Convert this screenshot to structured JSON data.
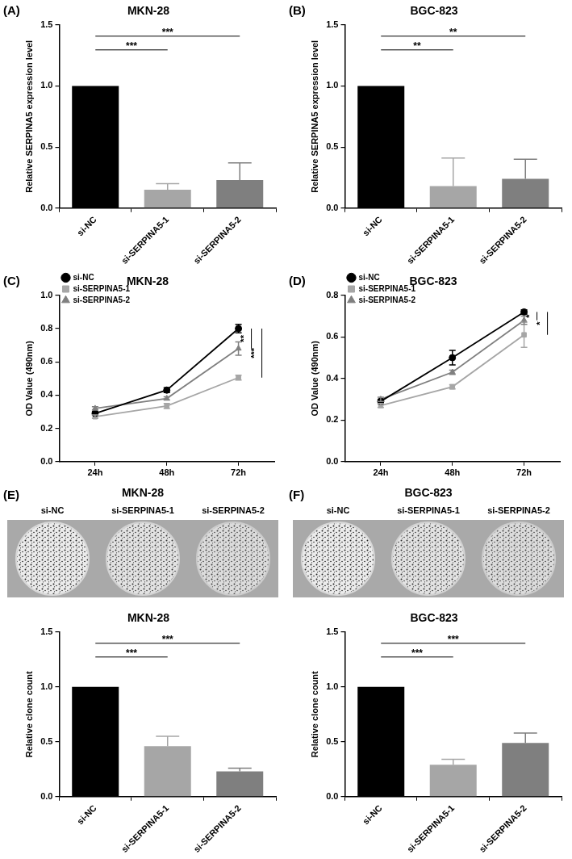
{
  "chart_data": [
    {
      "panel": "(A)",
      "type": "bar",
      "title": "MKN-28",
      "y_label": "Relative SERPINA5 expression level",
      "categories": [
        "si-NC",
        "si-SERPINA5-1",
        "si-SERPINA5-2"
      ],
      "values": [
        1.0,
        0.15,
        0.23
      ],
      "errors": [
        0,
        0.05,
        0.14
      ],
      "colors": [
        "#000000",
        "#a6a6a6",
        "#7f7f7f"
      ],
      "ylim": [
        0,
        1.5
      ],
      "yticks": [
        {
          "value": 0,
          "label": "0.0"
        },
        {
          "value": 0.5,
          "label": "0.5"
        },
        {
          "value": 1,
          "label": "1.0"
        },
        {
          "value": 1.5,
          "label": "1.5"
        }
      ],
      "grid": false,
      "annotations": [
        {
          "from": "si-NC",
          "to": "si-SERPINA5-1",
          "text": "***"
        },
        {
          "from": "si-NC",
          "to": "si-SERPINA5-2",
          "text": "***"
        }
      ]
    },
    {
      "panel": "(B)",
      "type": "bar",
      "title": "BGC-823",
      "y_label": "Relative SERPINA5 expression level",
      "categories": [
        "si-NC",
        "si-SERPINA5-1",
        "si-SERPINA5-2"
      ],
      "values": [
        1.0,
        0.18,
        0.24
      ],
      "errors": [
        0,
        0.23,
        0.16
      ],
      "colors": [
        "#000000",
        "#a6a6a6",
        "#7f7f7f"
      ],
      "ylim": [
        0,
        1.5
      ],
      "yticks": [
        {
          "value": 0,
          "label": "0.0"
        },
        {
          "value": 0.5,
          "label": "0.5"
        },
        {
          "value": 1,
          "label": "1.0"
        },
        {
          "value": 1.5,
          "label": "1.5"
        }
      ],
      "grid": false,
      "annotations": [
        {
          "from": "si-NC",
          "to": "si-SERPINA5-1",
          "text": "**"
        },
        {
          "from": "si-NC",
          "to": "si-SERPINA5-2",
          "text": "**"
        }
      ]
    },
    {
      "panel": "(C)",
      "type": "line",
      "title": "MKN-28",
      "y_label": "OD Value (490nm)",
      "categories": [
        "24h",
        "48h",
        "72h"
      ],
      "series": [
        {
          "name": "si-NC",
          "color": "#000000",
          "marker": "circle",
          "values": [
            0.29,
            0.43,
            0.8
          ],
          "errors": [
            0.01,
            0.015,
            0.025
          ]
        },
        {
          "name": "si-SERPINA5-1",
          "color": "#a6a6a6",
          "marker": "square",
          "values": [
            0.27,
            0.335,
            0.505
          ],
          "errors": [
            0.01,
            0.015,
            0.015
          ]
        },
        {
          "name": "si-SERPINA5-2",
          "color": "#808080",
          "marker": "triangle",
          "values": [
            0.32,
            0.38,
            0.68
          ],
          "errors": [
            0.01,
            0.01,
            0.04
          ]
        }
      ],
      "ylim": [
        0,
        1.0
      ],
      "yticks": [
        {
          "value": 0,
          "label": "0.0"
        },
        {
          "value": 0.2,
          "label": "0.2"
        },
        {
          "value": 0.4,
          "label": "0.4"
        },
        {
          "value": 0.6,
          "label": "0.6"
        },
        {
          "value": 0.8,
          "label": "0.8"
        },
        {
          "value": 1,
          "label": "1.0"
        }
      ],
      "grid": false,
      "legend": "upper left",
      "annotations": [
        {
          "at": "72h",
          "from": "si-NC",
          "to": "si-SERPINA5-2",
          "text": "**"
        },
        {
          "at": "72h",
          "from": "si-NC",
          "to": "si-SERPINA5-1",
          "text": "***"
        }
      ]
    },
    {
      "panel": "(D)",
      "type": "line",
      "title": "BGC-823",
      "y_label": "OD Value (490nm)",
      "categories": [
        "24h",
        "48h",
        "72h"
      ],
      "series": [
        {
          "name": "si-NC",
          "color": "#000000",
          "marker": "circle",
          "values": [
            0.29,
            0.5,
            0.72
          ],
          "errors": [
            0.01,
            0.035,
            0.01
          ]
        },
        {
          "name": "si-SERPINA5-1",
          "color": "#a6a6a6",
          "marker": "square",
          "values": [
            0.27,
            0.36,
            0.61
          ],
          "errors": [
            0.01,
            0.01,
            0.06
          ]
        },
        {
          "name": "si-SERPINA5-2",
          "color": "#808080",
          "marker": "triangle",
          "values": [
            0.3,
            0.43,
            0.68
          ],
          "errors": [
            0.01,
            0.01,
            0.02
          ]
        }
      ],
      "ylim": [
        0,
        0.8
      ],
      "yticks": [
        {
          "value": 0,
          "label": "0.0"
        },
        {
          "value": 0.2,
          "label": "0.2"
        },
        {
          "value": 0.4,
          "label": "0.4"
        },
        {
          "value": 0.6,
          "label": "0.6"
        },
        {
          "value": 0.8,
          "label": "0.8"
        }
      ],
      "grid": false,
      "legend": "upper left",
      "annotations": [
        {
          "at": "72h",
          "from": "si-NC",
          "to": "si-SERPINA5-2",
          "text": "*"
        },
        {
          "at": "72h",
          "from": "si-NC",
          "to": "si-SERPINA5-1",
          "text": "*"
        }
      ]
    },
    {
      "type": "bar",
      "title": "MKN-28",
      "y_label": "Relative clone count",
      "categories": [
        "si-NC",
        "si-SERPINA5-1",
        "si-SERPINA5-2"
      ],
      "values": [
        1.0,
        0.46,
        0.23
      ],
      "errors": [
        0,
        0.09,
        0.03
      ],
      "colors": [
        "#000000",
        "#a6a6a6",
        "#7f7f7f"
      ],
      "ylim": [
        0,
        1.5
      ],
      "yticks": [
        {
          "value": 0,
          "label": "0.0"
        },
        {
          "value": 0.5,
          "label": "0.5"
        },
        {
          "value": 1,
          "label": "1.0"
        },
        {
          "value": 1.5,
          "label": "1.5"
        }
      ],
      "grid": false,
      "annotations": [
        {
          "from": "si-NC",
          "to": "si-SERPINA5-1",
          "text": "***"
        },
        {
          "from": "si-NC",
          "to": "si-SERPINA5-2",
          "text": "***"
        }
      ]
    },
    {
      "type": "bar",
      "title": "BGC-823",
      "y_label": "Relative clone count",
      "categories": [
        "si-NC",
        "si-SERPINA5-1",
        "si-SERPINA5-2"
      ],
      "values": [
        1.0,
        0.29,
        0.49
      ],
      "errors": [
        0,
        0.05,
        0.09
      ],
      "colors": [
        "#000000",
        "#a6a6a6",
        "#7f7f7f"
      ],
      "ylim": [
        0,
        1.5
      ],
      "yticks": [
        {
          "value": 0,
          "label": "0.0"
        },
        {
          "value": 0.5,
          "label": "0.5"
        },
        {
          "value": 1,
          "label": "1.0"
        },
        {
          "value": 1.5,
          "label": "1.5"
        }
      ],
      "grid": false,
      "annotations": [
        {
          "from": "si-NC",
          "to": "si-SERPINA5-1",
          "text": "***"
        },
        {
          "from": "si-NC",
          "to": "si-SERPINA5-2",
          "text": "***"
        }
      ]
    }
  ],
  "images": [
    {
      "panel": "(E)",
      "title": "MKN-28",
      "labels": [
        "si-NC",
        "si-SERPINA5-1",
        "si-SERPINA5-2"
      ]
    },
    {
      "panel": "(F)",
      "title": "BGC-823",
      "labels": [
        "si-NC",
        "si-SERPINA5-1",
        "si-SERPINA5-2"
      ]
    }
  ]
}
